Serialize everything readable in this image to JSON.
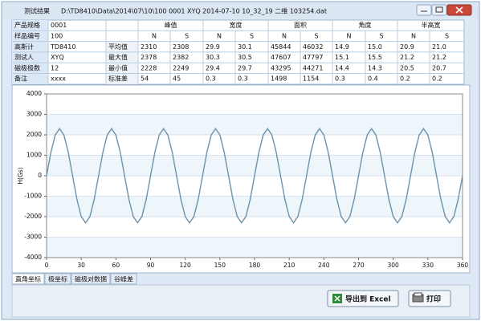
{
  "window": {
    "title": "测试结果",
    "path": "D:\\TD8410\\Data\\2014\\07\\10\\100 0001 XYQ 2014-07-10 10_32_19 二维 103254.dat"
  },
  "table": {
    "info_labels": [
      "产品规格",
      "样品编号",
      "高斯计",
      "测试人",
      "磁极极数",
      "备注"
    ],
    "info_values": [
      "0001",
      "100",
      "TD8410",
      "XYQ",
      "12",
      "xxxx"
    ],
    "groups": [
      "峰值",
      "宽度",
      "面积",
      "角度",
      "半高宽"
    ],
    "subheaders": [
      "N",
      "S",
      "N",
      "S",
      "N",
      "S",
      "N",
      "S",
      "N",
      "S"
    ],
    "stats": [
      {
        "name": "平均值",
        "values": [
          "2310",
          "2308",
          "29.9",
          "30.1",
          "45844",
          "46032",
          "14.9",
          "15.0",
          "20.9",
          "21.0"
        ]
      },
      {
        "name": "最大值",
        "values": [
          "2378",
          "2382",
          "30.3",
          "30.5",
          "47607",
          "47797",
          "15.1",
          "15.5",
          "21.2",
          "21.2"
        ]
      },
      {
        "name": "最小值",
        "values": [
          "2228",
          "2249",
          "29.4",
          "29.7",
          "43295",
          "44271",
          "14.4",
          "14.3",
          "20.5",
          "20.7"
        ]
      },
      {
        "name": "标准差",
        "values": [
          "54",
          "45",
          "0.3",
          "0.3",
          "1498",
          "1154",
          "0.3",
          "0.4",
          "0.2",
          "0.2"
        ]
      }
    ]
  },
  "chart_data": {
    "type": "line",
    "ylabel": "H(Gs)",
    "color": "#6b93ab",
    "x": [
      0,
      3.75,
      7.5,
      11.25,
      15,
      18.75,
      22.5,
      26.25,
      30,
      33.75,
      37.5,
      41.25,
      45,
      48.75,
      52.5,
      56.25,
      60,
      63.75,
      67.5,
      71.25,
      75,
      78.75,
      82.5,
      86.25,
      90,
      93.75,
      97.5,
      101.25,
      105,
      108.75,
      112.5,
      116.25,
      120,
      123.75,
      127.5,
      131.25,
      135,
      138.75,
      142.5,
      146.25,
      150,
      153.75,
      157.5,
      161.25,
      165,
      168.75,
      172.5,
      176.25,
      180,
      183.75,
      187.5,
      191.25,
      195,
      198.75,
      202.5,
      206.25,
      210,
      213.75,
      217.5,
      221.25,
      225,
      228.75,
      232.5,
      236.25,
      240,
      243.75,
      247.5,
      251.25,
      255,
      258.75,
      262.5,
      266.25,
      270,
      273.75,
      277.5,
      281.25,
      285,
      288.75,
      292.5,
      296.25,
      300,
      303.75,
      307.5,
      311.25,
      315,
      318.75,
      322.5,
      326.25,
      330,
      333.75,
      337.5,
      341.25,
      345,
      348.75,
      352.5,
      356.25,
      360
    ],
    "values": [
      0,
      1150,
      1992,
      2300,
      1992,
      1150,
      0,
      -1150,
      -1992,
      -2300,
      -1992,
      -1150,
      0,
      1150,
      1992,
      2300,
      1992,
      1150,
      0,
      -1150,
      -1992,
      -2300,
      -1992,
      -1150,
      0,
      1150,
      1992,
      2300,
      1992,
      1150,
      0,
      -1150,
      -1992,
      -2300,
      -1992,
      -1150,
      0,
      1150,
      1992,
      2300,
      1992,
      1150,
      0,
      -1150,
      -1992,
      -2300,
      -1992,
      -1150,
      0,
      1150,
      1992,
      2300,
      1992,
      1150,
      0,
      -1150,
      -1992,
      -2300,
      -1992,
      -1150,
      0,
      1150,
      1992,
      2300,
      1992,
      1150,
      0,
      -1150,
      -1992,
      -2300,
      -1992,
      -1150,
      0,
      1150,
      1992,
      2300,
      1992,
      1150,
      0,
      -1150,
      -1992,
      -2300,
      -1992,
      -1150,
      0,
      1150,
      1992,
      2300,
      1992,
      1150,
      0,
      -1150,
      -1992,
      -2300,
      -1992,
      -1150,
      0
    ],
    "xlim": [
      0,
      360
    ],
    "xticks": [
      0,
      30,
      60,
      90,
      120,
      150,
      180,
      210,
      240,
      270,
      300,
      330,
      360
    ],
    "ylim": [
      -4000,
      4000
    ],
    "yticks": [
      -4000,
      -3000,
      -2000,
      -1000,
      0,
      1000,
      2000,
      3000,
      4000
    ],
    "grid": true
  },
  "tabs": [
    "直角坐标",
    "极坐标",
    "磁极对数据",
    "谷峰差"
  ],
  "buttons": [
    "导出到 Excel",
    "打印"
  ]
}
